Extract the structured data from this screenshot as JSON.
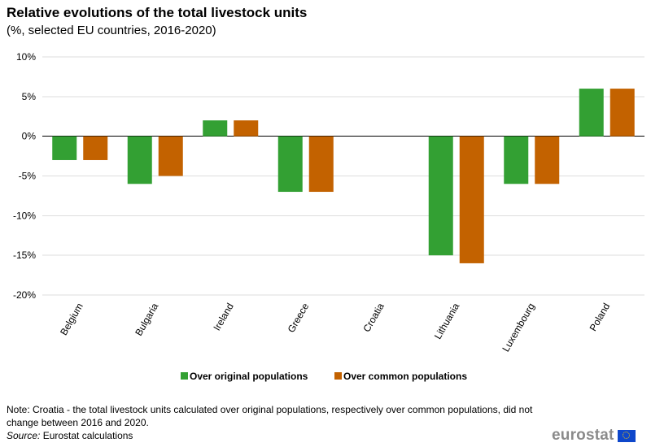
{
  "header": {
    "title": "Relative evolutions of the total livestock units",
    "subtitle": "(%, selected EU countries, 2016-2020)"
  },
  "chart_data": {
    "type": "bar",
    "title": "Relative evolutions of the total livestock units",
    "subtitle": "(%, selected EU countries, 2016-2020)",
    "xlabel": "",
    "ylabel": "",
    "ylim": [
      -20,
      10
    ],
    "yticks": [
      10,
      5,
      0,
      -5,
      -10,
      -15,
      -20
    ],
    "ytick_labels": [
      "10%",
      "5%",
      "0%",
      "-5%",
      "-10%",
      "-15%",
      "-20%"
    ],
    "grid": true,
    "legend_position": "bottom-center",
    "categories": [
      "Belgium",
      "Bulgaria",
      "Ireland",
      "Greece",
      "Croatia",
      "Lithuania",
      "Luxembourg",
      "Poland"
    ],
    "series": [
      {
        "name": "Over original populations",
        "color": "#33a033",
        "values": [
          -3,
          -6,
          2,
          -7,
          0,
          -15,
          -6,
          6
        ]
      },
      {
        "name": "Over common populations",
        "color": "#c36200",
        "values": [
          -3,
          -5,
          2,
          -7,
          0,
          -16,
          -6,
          6
        ]
      }
    ]
  },
  "footer": {
    "note": "Note: Croatia - the total livestock units calculated over original populations, respectively over common populations, did not change between 2016 and 2020.",
    "source_label": "Source:",
    "source_text": " Eurostat calculations",
    "logo_text": "eurostat"
  }
}
